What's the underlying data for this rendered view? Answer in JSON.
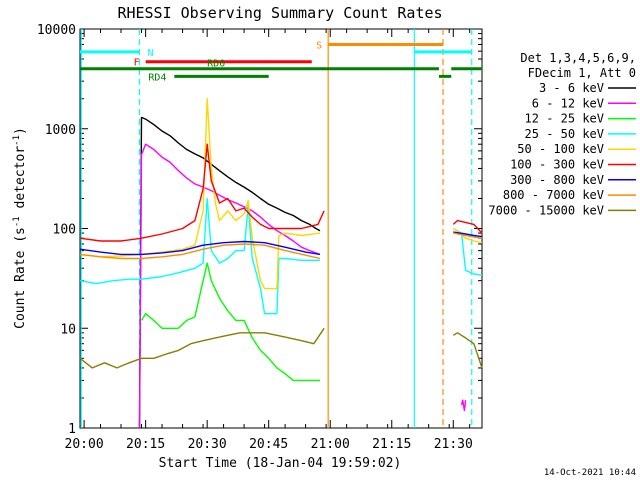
{
  "title": "RHESSI Observing Summary Count Rates",
  "xlabel": "Start Time (18-Jan-04 19:59:02)",
  "ylabel_main": "Count Rate (s",
  "ylabel_sup": "-1",
  "ylabel_mid": " detector",
  "ylabel_sup2": "-1",
  "ylabel_end": ")",
  "timestamp": "14-Oct-2021 10:44",
  "legend": {
    "header_line1": "Det 1,3,4,5,6,9,",
    "header_line2": "FDecim 1, Att 0"
  },
  "flag_labels": {
    "N": "N",
    "F": "F",
    "S": "S",
    "RD0": "RD0",
    "RD4": "RD4"
  },
  "colors": {
    "s1": "#000000",
    "s2": "#ff00ff",
    "s3": "#00ff00",
    "s4": "#00ffff",
    "s5": "#ffd700",
    "s6": "#ff0000",
    "s7": "#0000ff",
    "s8": "#ff8c00",
    "s9": "#8b7d00",
    "n_flag": "#00ffff",
    "f_flag": "#ff0000",
    "s_flag": "#ff8c00",
    "rd_flag": "#008000"
  },
  "chart_data": {
    "type": "line",
    "title": "RHESSI Observing Summary Count Rates",
    "xlabel": "Start Time (18-Jan-04 19:59:02)",
    "ylabel": "Count Rate (s-1 detector-1)",
    "yscale": "log",
    "ylim": [
      1,
      10000
    ],
    "xlim_minutes": [
      0,
      98
    ],
    "xtick_labels": [
      "20:00",
      "20:15",
      "20:30",
      "20:45",
      "21:00",
      "21:15",
      "21:30"
    ],
    "xtick_minutes": [
      1,
      16,
      31,
      46,
      61,
      76,
      91
    ],
    "ytick_labels": [
      "1",
      "10",
      "100",
      "1000",
      "10000"
    ],
    "ytick_values": [
      1,
      10,
      100,
      1000,
      10000
    ],
    "grid": false,
    "legend_position": "right",
    "x_unit": "minutes after 19:59:02",
    "series": [
      {
        "name": "3 - 6 keV",
        "color": "#000000",
        "segments": [
          [
            [
              14.5,
              1.0
            ],
            [
              15,
              1300
            ],
            [
              16,
              1250
            ],
            [
              18,
              1100
            ],
            [
              20,
              950
            ],
            [
              22,
              850
            ],
            [
              24,
              720
            ],
            [
              26,
              620
            ],
            [
              28,
              560
            ],
            [
              30,
              510
            ],
            [
              32,
              440
            ],
            [
              34,
              380
            ],
            [
              36,
              330
            ],
            [
              38,
              290
            ],
            [
              40,
              260
            ],
            [
              42,
              230
            ],
            [
              44,
              200
            ],
            [
              46,
              175
            ],
            [
              48,
              160
            ],
            [
              50,
              145
            ],
            [
              52,
              135
            ],
            [
              54,
              120
            ],
            [
              56,
              110
            ],
            [
              57.5,
              100
            ],
            [
              58.5,
              95
            ]
          ]
        ]
      },
      {
        "name": "6 - 12 keV",
        "color": "#ff00ff",
        "segments": [
          [
            [
              14.5,
              1.0
            ],
            [
              15,
              550
            ],
            [
              16,
              700
            ],
            [
              18,
              620
            ],
            [
              20,
              520
            ],
            [
              22,
              460
            ],
            [
              24,
              380
            ],
            [
              26,
              320
            ],
            [
              28,
              280
            ],
            [
              30,
              260
            ],
            [
              32,
              240
            ],
            [
              34,
              215
            ],
            [
              36,
              195
            ],
            [
              38,
              180
            ],
            [
              40,
              165
            ],
            [
              42,
              150
            ],
            [
              44,
              130
            ],
            [
              46,
              110
            ],
            [
              48,
              95
            ],
            [
              50,
              85
            ],
            [
              52,
              75
            ],
            [
              54,
              65
            ],
            [
              56,
              60
            ],
            [
              58.5,
              55
            ]
          ],
          [
            [
              93,
              1.7
            ],
            [
              93.3,
              1.9
            ],
            [
              93.7,
              1.5
            ],
            [
              94,
              1.9
            ]
          ]
        ]
      },
      {
        "name": "12 - 25 keV",
        "color": "#00ff00",
        "segments": [
          [
            [
              15,
              12
            ],
            [
              16,
              14
            ],
            [
              18,
              12
            ],
            [
              20,
              10
            ],
            [
              22,
              10
            ],
            [
              24,
              10
            ],
            [
              26,
              12
            ],
            [
              28,
              13
            ],
            [
              30,
              30
            ],
            [
              31,
              45
            ],
            [
              32,
              30
            ],
            [
              34,
              20
            ],
            [
              36,
              15
            ],
            [
              38,
              12
            ],
            [
              40,
              12
            ],
            [
              42,
              8
            ],
            [
              44,
              6
            ],
            [
              46,
              5
            ],
            [
              48,
              4
            ],
            [
              50,
              3.5
            ],
            [
              52,
              3
            ],
            [
              54,
              3
            ],
            [
              56,
              3
            ],
            [
              58.5,
              3
            ]
          ]
        ]
      },
      {
        "name": "25 - 50 keV",
        "color": "#00ffff",
        "segments": [
          [
            [
              0,
              30
            ],
            [
              4,
              28
            ],
            [
              8,
              30
            ],
            [
              12,
              31
            ],
            [
              15,
              31
            ],
            [
              20,
              33
            ],
            [
              24,
              36
            ],
            [
              28,
              40
            ],
            [
              30,
              45
            ],
            [
              31,
              200
            ],
            [
              32,
              60
            ],
            [
              34,
              45
            ],
            [
              36,
              50
            ],
            [
              38,
              60
            ],
            [
              40,
              60
            ],
            [
              41,
              170
            ],
            [
              42,
              50
            ],
            [
              44,
              25
            ],
            [
              45,
              14
            ],
            [
              46,
              14
            ],
            [
              48,
              14
            ],
            [
              48.5,
              50
            ],
            [
              50,
              50
            ],
            [
              54,
              48
            ],
            [
              58.5,
              48
            ]
          ],
          [
            [
              91,
              100
            ],
            [
              93,
              90
            ],
            [
              94,
              38
            ],
            [
              96,
              35
            ],
            [
              98,
              34
            ]
          ]
        ]
      },
      {
        "name": "50 - 100 keV",
        "color": "#ffd700",
        "segments": [
          [
            [
              0,
              55
            ],
            [
              5,
              52
            ],
            [
              10,
              53
            ],
            [
              15,
              55
            ],
            [
              20,
              58
            ],
            [
              25,
              62
            ],
            [
              28,
              68
            ],
            [
              30,
              150
            ],
            [
              31,
              2000
            ],
            [
              32,
              400
            ],
            [
              33,
              180
            ],
            [
              34,
              120
            ],
            [
              36,
              150
            ],
            [
              38,
              120
            ],
            [
              40,
              140
            ],
            [
              41,
              190
            ],
            [
              42,
              80
            ],
            [
              44,
              30
            ],
            [
              45,
              25
            ],
            [
              46,
              25
            ],
            [
              48,
              25
            ],
            [
              48.5,
              85
            ],
            [
              50,
              90
            ],
            [
              54,
              85
            ],
            [
              58.5,
              90
            ]
          ],
          [
            [
              91,
              100
            ],
            [
              92,
              95
            ],
            [
              94,
              80
            ],
            [
              96,
              75
            ],
            [
              98,
              72
            ]
          ]
        ]
      },
      {
        "name": "100 - 300 keV",
        "color": "#ff0000",
        "segments": [
          [
            [
              0,
              80
            ],
            [
              5,
              75
            ],
            [
              10,
              75
            ],
            [
              15,
              80
            ],
            [
              20,
              88
            ],
            [
              25,
              100
            ],
            [
              28,
              120
            ],
            [
              30,
              250
            ],
            [
              31,
              700
            ],
            [
              32,
              300
            ],
            [
              34,
              180
            ],
            [
              36,
              200
            ],
            [
              38,
              150
            ],
            [
              40,
              160
            ],
            [
              42,
              130
            ],
            [
              44,
              110
            ],
            [
              46,
              100
            ],
            [
              48,
              100
            ],
            [
              50,
              100
            ],
            [
              54,
              100
            ],
            [
              58,
              110
            ],
            [
              59.5,
              150
            ]
          ],
          [
            [
              91,
              110
            ],
            [
              92,
              120
            ],
            [
              94,
              115
            ],
            [
              96,
              110
            ],
            [
              98,
              90
            ]
          ]
        ]
      },
      {
        "name": "300 - 800 keV",
        "color": "#0000ff",
        "segments": [
          [
            [
              0,
              62
            ],
            [
              5,
              58
            ],
            [
              10,
              55
            ],
            [
              15,
              55
            ],
            [
              20,
              57
            ],
            [
              25,
              60
            ],
            [
              30,
              68
            ],
            [
              35,
              72
            ],
            [
              40,
              74
            ],
            [
              45,
              72
            ],
            [
              50,
              65
            ],
            [
              55,
              58
            ],
            [
              58.5,
              55
            ]
          ],
          [
            [
              91,
              92
            ],
            [
              94,
              88
            ],
            [
              96,
              85
            ],
            [
              98,
              83
            ]
          ]
        ]
      },
      {
        "name": "800 - 7000 keV",
        "color": "#ff8c00",
        "segments": [
          [
            [
              0,
              55
            ],
            [
              5,
              52
            ],
            [
              10,
              50
            ],
            [
              15,
              50
            ],
            [
              20,
              52
            ],
            [
              25,
              55
            ],
            [
              30,
              62
            ],
            [
              35,
              68
            ],
            [
              40,
              70
            ],
            [
              45,
              68
            ],
            [
              50,
              60
            ],
            [
              55,
              54
            ],
            [
              58.5,
              50
            ]
          ],
          [
            [
              91,
              90
            ],
            [
              94,
              85
            ],
            [
              96,
              82
            ],
            [
              98,
              80
            ]
          ]
        ]
      },
      {
        "name": "7000 - 15000 keV",
        "color": "#8b7d00",
        "segments": [
          [
            [
              0,
              5
            ],
            [
              3,
              4
            ],
            [
              6,
              4.5
            ],
            [
              9,
              4
            ],
            [
              12,
              4.5
            ],
            [
              15,
              5
            ],
            [
              18,
              5
            ],
            [
              21,
              5.5
            ],
            [
              24,
              6
            ],
            [
              27,
              7
            ],
            [
              30,
              7.5
            ],
            [
              33,
              8
            ],
            [
              36,
              8.5
            ],
            [
              39,
              9
            ],
            [
              42,
              9
            ],
            [
              45,
              9
            ],
            [
              48,
              8.5
            ],
            [
              51,
              8
            ],
            [
              54,
              7.5
            ],
            [
              57,
              7
            ],
            [
              59.5,
              10
            ]
          ],
          [
            [
              91,
              8.5
            ],
            [
              92,
              9
            ],
            [
              94,
              8
            ],
            [
              96,
              7
            ],
            [
              98,
              4
            ]
          ]
        ]
      }
    ],
    "vertical_lines": [
      {
        "x": 0.3,
        "color": "#00ffff",
        "style": "solid"
      },
      {
        "x": 14.5,
        "color": "#00ffff",
        "style": "dashed"
      },
      {
        "x": 60.5,
        "color": "#ff8c00",
        "style": "solid"
      },
      {
        "x": 81.5,
        "color": "#00ffff",
        "style": "solid"
      },
      {
        "x": 88.5,
        "color": "#ff8c00",
        "style": "dashed"
      },
      {
        "x": 95.5,
        "color": "#00ffff",
        "style": "dashed"
      }
    ],
    "flag_bars": [
      {
        "label": "N",
        "color": "#00ffff",
        "y": 5900,
        "segments": [
          [
            0,
            14.5
          ],
          [
            81.5,
            95.5
          ]
        ]
      },
      {
        "label": "F",
        "color": "#ff0000",
        "y": 4700,
        "segments": [
          [
            16,
            56.5
          ]
        ]
      },
      {
        "label": "S",
        "color": "#ff8c00",
        "y": 7000,
        "segments": [
          [
            60.5,
            88.5
          ]
        ]
      },
      {
        "label": "RD0",
        "color": "#008000",
        "y": 4000,
        "segments": [
          [
            0,
            87.5
          ],
          [
            90.5,
            98
          ]
        ]
      },
      {
        "label": "RD4",
        "color": "#008000",
        "y": 3350,
        "segments": [
          [
            23,
            46
          ],
          [
            87.5,
            90.5
          ]
        ]
      }
    ]
  }
}
